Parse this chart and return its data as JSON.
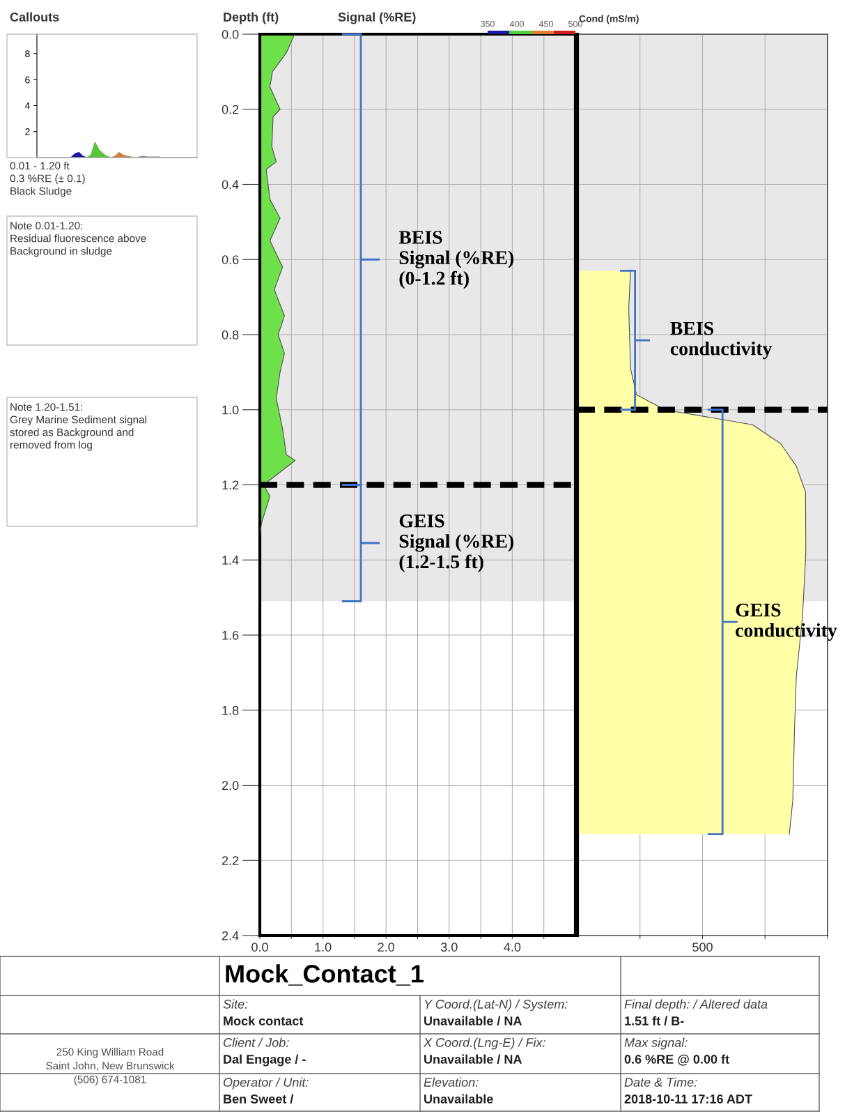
{
  "chart_data": [
    {
      "type": "area",
      "title": "Callouts",
      "categories": [
        null,
        null,
        null,
        null,
        null,
        null,
        null,
        null,
        null,
        null,
        null,
        null,
        null,
        null,
        null,
        null,
        null,
        null,
        null,
        null,
        null,
        null,
        null,
        null,
        null,
        null,
        null,
        null,
        null,
        null,
        null,
        null,
        null,
        null,
        null,
        null,
        null,
        null,
        null,
        null
      ],
      "series": [
        {
          "color": "#1a1aa0",
          "values": [
            null,
            null,
            null,
            null,
            null,
            null,
            null,
            null,
            0,
            0.3,
            0.4,
            0.1,
            0,
            null,
            null,
            null,
            null,
            null,
            null,
            null,
            null,
            null,
            null,
            null,
            null,
            null,
            null,
            null,
            null,
            null,
            null,
            null,
            null,
            null,
            null,
            null,
            null,
            null,
            null,
            null
          ]
        },
        {
          "color": "#5cc43a",
          "values": [
            null,
            null,
            null,
            null,
            null,
            null,
            null,
            null,
            null,
            null,
            null,
            null,
            0,
            0.2,
            1.2,
            0.6,
            0.3,
            0.1,
            0,
            null,
            null,
            null,
            null,
            null,
            null,
            null,
            null,
            null,
            null,
            null,
            null,
            null,
            null,
            null,
            null,
            null,
            null,
            null,
            null,
            null
          ]
        },
        {
          "color": "#d08040",
          "values": [
            null,
            null,
            null,
            null,
            null,
            null,
            null,
            null,
            null,
            null,
            null,
            null,
            null,
            null,
            null,
            null,
            null,
            null,
            0,
            0.1,
            0.4,
            0.2,
            0.1,
            0.05,
            0,
            null,
            null,
            null,
            null,
            null,
            null,
            null,
            null,
            null,
            null,
            null,
            null,
            null,
            null,
            null
          ]
        },
        {
          "color": "#909090",
          "values": [
            null,
            null,
            null,
            null,
            null,
            null,
            null,
            null,
            null,
            null,
            null,
            null,
            null,
            null,
            null,
            null,
            null,
            null,
            null,
            null,
            null,
            null,
            null,
            null,
            0,
            0.05,
            0.1,
            0.05,
            0.05,
            0.05,
            0.05,
            0,
            null,
            null,
            null,
            null,
            null,
            null,
            null,
            null
          ]
        }
      ],
      "ylim": [
        0,
        9.5
      ],
      "yticks": [
        2,
        4,
        6,
        8
      ],
      "tick_labels": "y",
      "annotations": [
        "0.01 - 1.20 ft\n0.3 %RE (± 0.1)\nBlack Sludge",
        "Note 0.01-1.20:\nResidual fluorescence above\nBackground in sludge",
        "Note 1.20-1.51:\nGrey Marine Sediment signal\nstored as Background and\nremoved from log"
      ]
    },
    {
      "type": "area",
      "orientation": "horizontal",
      "xlabel": "Signal (%RE)",
      "ylabel": "Depth (ft)",
      "series": [
        {
          "color": "#6ee04a",
          "x": [
            0,
            0.05,
            0.1,
            0.14,
            0.2,
            0.22,
            0.3,
            0.34,
            0.36,
            0.44,
            0.49,
            0.55,
            0.62,
            0.68,
            0.75,
            0.8,
            0.85,
            0.9,
            0.97,
            1.05,
            1.12,
            1.135,
            1.2,
            1.23,
            1.3,
            1.33
          ],
          "values": [
            0.55,
            0.42,
            0.2,
            0.16,
            0.32,
            0.21,
            0.19,
            0.26,
            0.1,
            0.16,
            0.32,
            0.16,
            0.36,
            0.23,
            0.39,
            0.29,
            0.39,
            0.32,
            0.26,
            0.36,
            0.42,
            0.56,
            0.06,
            0.16,
            0.03,
            0
          ]
        }
      ],
      "xlim": [
        0,
        5
      ],
      "xticks": [
        {
          "value": 0,
          "label": "0.0"
        },
        {
          "value": 0.5,
          "label": null
        },
        {
          "value": 1,
          "label": "1.0"
        },
        {
          "value": 1.5,
          "label": null
        },
        {
          "value": 2,
          "label": "2.0"
        },
        {
          "value": 2.5,
          "label": null
        },
        {
          "value": 3,
          "label": "3.0"
        },
        {
          "value": 3.5,
          "label": null
        },
        {
          "value": 4,
          "label": "4.0"
        },
        {
          "value": 4.5,
          "label": null
        }
      ],
      "ylim": [
        2.4,
        0
      ],
      "yticks": [
        {
          "value": 0,
          "label": "0.0"
        },
        0.2,
        0.4,
        0.6,
        0.8,
        {
          "value": 1,
          "label": "1.0"
        },
        1.2,
        1.4,
        1.6,
        1.8,
        {
          "value": 2,
          "label": "2.0"
        },
        2.2,
        2.4
      ],
      "grid": true,
      "clim": [
        350,
        500
      ],
      "cticks": [
        350,
        400,
        450,
        500
      ],
      "ref_lines": [
        {
          "axis": "y",
          "value": 1.2,
          "color": "#000000",
          "line_style": "dashed"
        }
      ],
      "bands": [
        {
          "axis": "y",
          "from": 0,
          "to": 1.51,
          "color": "#e8e8e8"
        }
      ],
      "annotations": [
        "BEIS\nSignal (%RE)\n(0-1.2 ft)",
        {
          "text": "GEIS\nSignal (%RE)\n(1.2-1.5 ft)",
          "y": 1.2
        }
      ]
    },
    {
      "type": "area",
      "orientation": "horizontal",
      "xlabel": "Cond (mS/m)",
      "series": [
        {
          "color": "#ffffa8",
          "x": [
            0.63,
            0.73,
            0.89,
            0.96,
            1.0,
            1.04,
            1.09,
            1.15,
            1.22,
            1.38,
            1.55,
            1.71,
            1.87,
            2.04,
            2.13
          ],
          "values": [
            212,
            205,
            212,
            236,
            349,
            700,
            812,
            875,
            912,
            913,
            900,
            875,
            867,
            861,
            847
          ]
        }
      ],
      "xlim": [
        0,
        1000
      ],
      "xticks": [
        {
          "value": 250,
          "label": null
        },
        500,
        {
          "value": 750,
          "label": null
        },
        {
          "value": 1000,
          "label": null
        }
      ],
      "ylim": [
        2.4,
        0
      ],
      "yticks": [
        0,
        0.2,
        0.4,
        0.6,
        0.8,
        1,
        1.2,
        1.4,
        1.6,
        1.8,
        2,
        2.2,
        2.4
      ],
      "tick_labels": "x",
      "grid": true,
      "ref_lines": [
        {
          "axis": "y",
          "value": 1.0,
          "color": "#000000",
          "line_style": "dashed"
        }
      ],
      "bands": [
        {
          "axis": "y",
          "from": 0,
          "to": 1.51,
          "color": "#e8e8e8"
        }
      ],
      "annotations": [
        {
          "text": "BEIS\nconductivity",
          "y": 1.0
        },
        "GEIS\nconductivity"
      ]
    },
    {
      "type": "other",
      "title": "Mock_Contact_1",
      "annotations": [
        "Site:",
        "Mock contact",
        "Y Coord.(Lat-N) / System:",
        "Unavailable / NA",
        "Final depth: / Altered data",
        "1.51 ft / B-",
        "Client / Job:",
        "Dal Engage / -",
        "X Coord.(Lng-E) / Fix:",
        "Unavailable / NA",
        "Max signal:",
        "0.6 %RE @ 0.00 ft",
        "Operator / Unit:",
        "Ben Sweet /",
        "Elevation:",
        "Unavailable",
        "Date & Time:",
        "2018-10-11 17:16 ADT",
        "250 King William Road\nSaint John, New Brunswick\n(506) 674-1081"
      ]
    }
  ]
}
